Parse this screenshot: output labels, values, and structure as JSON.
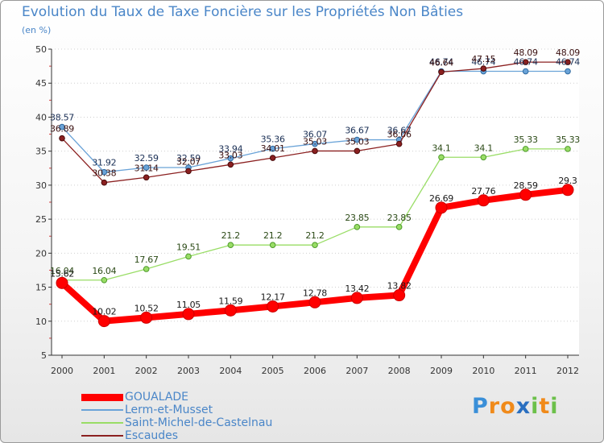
{
  "chart_data": {
    "type": "line",
    "title": "Evolution du Taux de Taxe Foncière sur les Propriétés Non Bâties",
    "ylabel": "(en %)",
    "xlabel": "",
    "x": [
      "2000",
      "2001",
      "2002",
      "2003",
      "2004",
      "2005",
      "2006",
      "2007",
      "2008",
      "2009",
      "2010",
      "2011",
      "2012"
    ],
    "ylim": [
      5,
      50
    ],
    "yticks": [
      5,
      10,
      15,
      20,
      25,
      30,
      35,
      40,
      45,
      50
    ],
    "grid": "horizontal-dotted",
    "legend_position": "bottom-left",
    "series": [
      {
        "name": "GOUALADE",
        "color": "#ff0000",
        "values": [
          15.62,
          10.02,
          10.52,
          11.05,
          11.59,
          12.17,
          12.78,
          13.42,
          13.82,
          26.69,
          27.76,
          28.59,
          29.3
        ],
        "labels": [
          "15.62",
          "10.02",
          "10.52",
          "11.05",
          "11.59",
          "12.17",
          "12.78",
          "13.42",
          "13.82",
          "26.69",
          "27.76",
          "28.59",
          "29.3"
        ]
      },
      {
        "name": "Lerm-et-Musset",
        "color": "#6aa3d8",
        "values": [
          38.57,
          31.92,
          32.59,
          32.59,
          33.94,
          35.36,
          36.07,
          36.67,
          36.67,
          46.74,
          46.74,
          46.74,
          46.74
        ],
        "labels": [
          "38.57",
          "31.92",
          "32.59",
          "32.59",
          "33.94",
          "35.36",
          "36.07",
          "36.67",
          "36.67",
          "46.74",
          "46.74",
          "46.74",
          "46.74"
        ]
      },
      {
        "name": "Saint-Michel-de-Castelnau",
        "color": "#99dd66",
        "values": [
          16.04,
          16.04,
          17.67,
          19.51,
          21.2,
          21.2,
          21.2,
          23.85,
          23.85,
          34.1,
          34.1,
          35.33,
          35.33
        ],
        "labels": [
          "16.04",
          "16.04",
          "17.67",
          "19.51",
          "21.2",
          "21.2",
          "21.2",
          "23.85",
          "23.85",
          "34.1",
          "34.1",
          "35.33",
          "35.33"
        ]
      },
      {
        "name": "Escaudes",
        "color": "#8b2020",
        "values": [
          36.89,
          30.38,
          31.14,
          32.07,
          33.03,
          34.01,
          35.03,
          35.03,
          36.06,
          46.64,
          47.15,
          48.09,
          48.09
        ],
        "labels": [
          "36.89",
          "30.38",
          "31.14",
          "32.07",
          "33.03",
          "34.01",
          "35.03",
          "35.03",
          "36.06",
          "46.64",
          "47.15",
          "48.09",
          "48.09"
        ]
      }
    ]
  },
  "logo": {
    "text": "Proxiti",
    "letters": [
      "P",
      "r",
      "o",
      "x",
      "i",
      "t",
      "i"
    ],
    "colors": [
      "#3a8fd8",
      "#f08a1a",
      "#f08a1a",
      "#2a6fc0",
      "#6cc04a",
      "#f08a1a",
      "#6cc04a"
    ]
  }
}
